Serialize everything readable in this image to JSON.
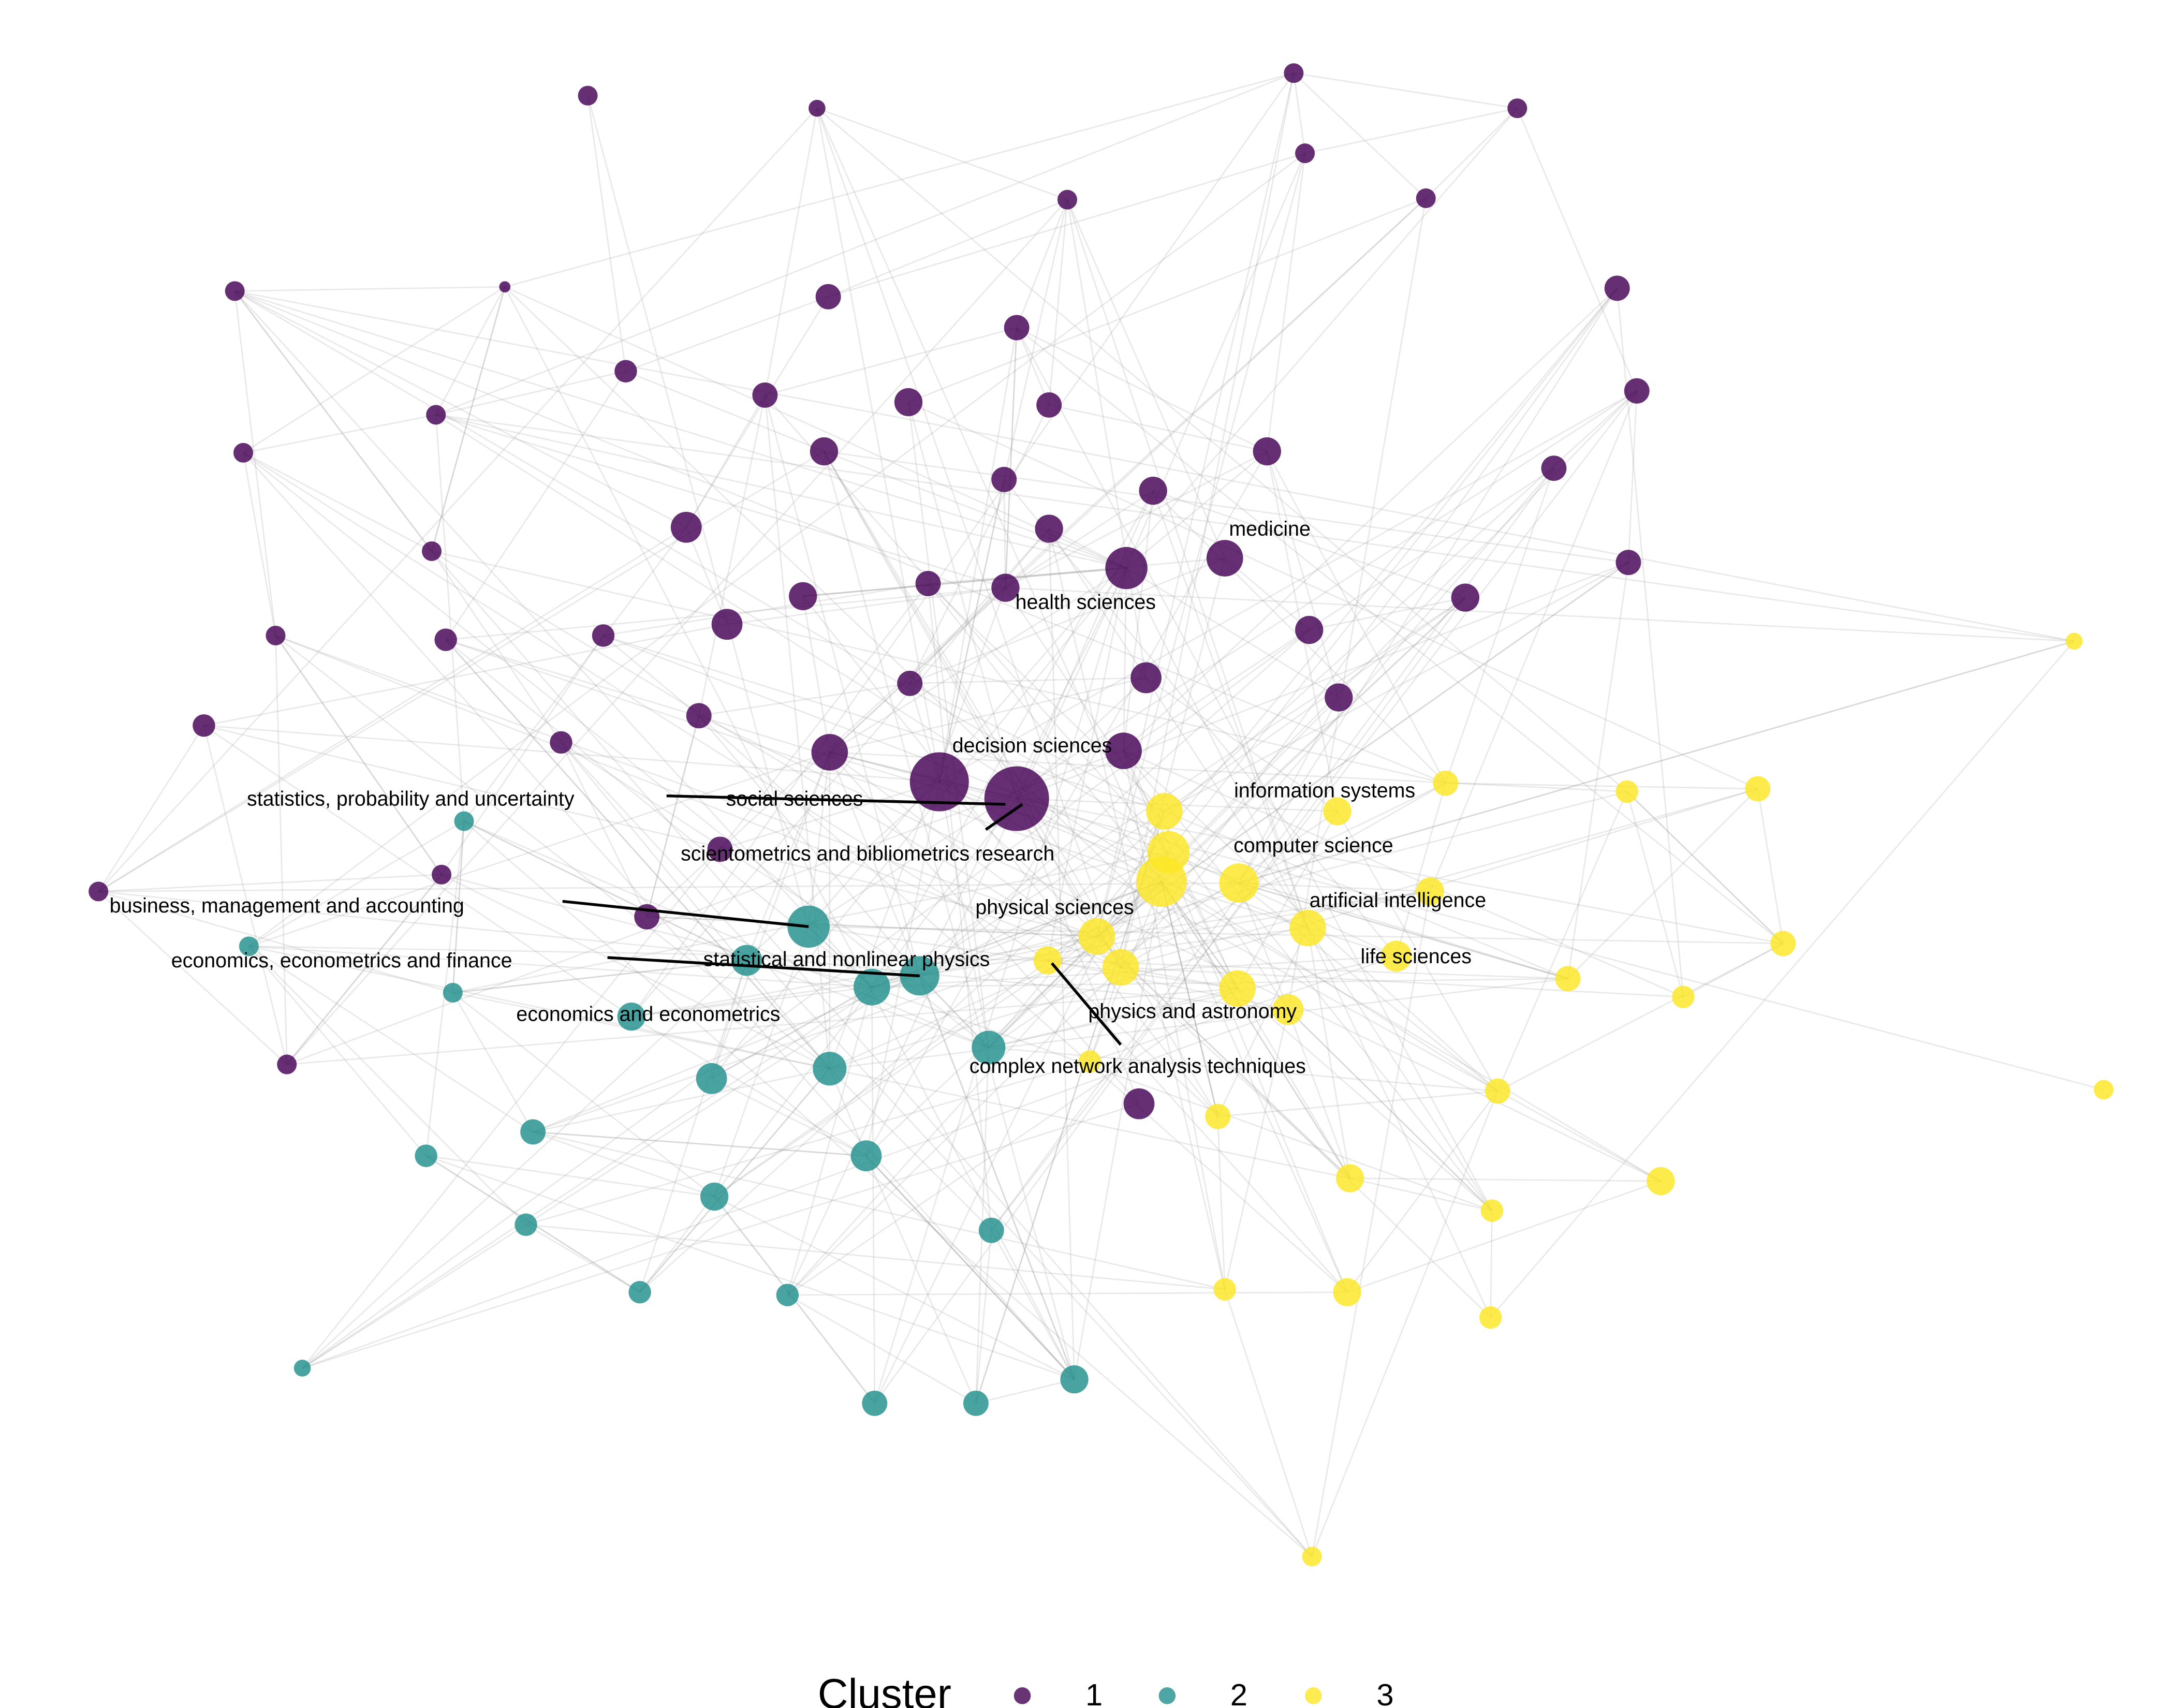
{
  "labels": [
    "medicine",
    "health sciences",
    "decision sciences",
    "statistics, probability and uncertainty",
    "social sciences",
    "scientometrics and bibliometrics research",
    "information systems",
    "computer science",
    "business, management and accounting",
    "artificial intelligence",
    "physical sciences",
    "economics, econometrics and finance",
    "statistical and nonlinear physics",
    "life sciences",
    "physics and astronomy",
    "economics and econometrics",
    "complex network analysis techniques"
  ],
  "legend": {
    "title": "Cluster",
    "entries": [
      "1",
      "2",
      "3"
    ]
  }
}
